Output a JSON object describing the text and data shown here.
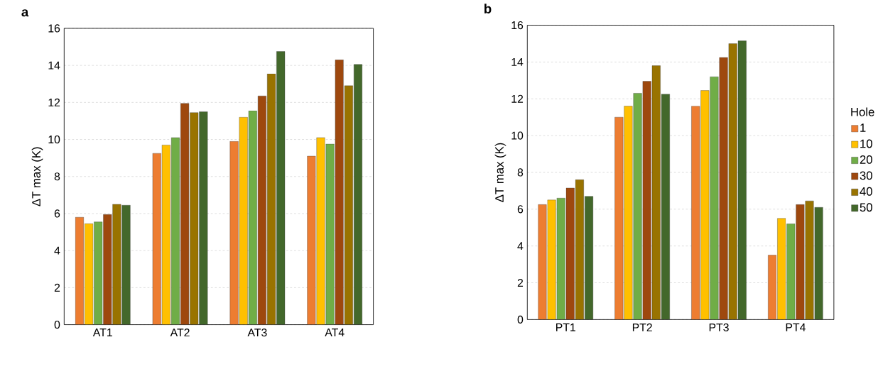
{
  "chart_data": [
    {
      "type": "bar",
      "title": "a",
      "ylabel": "ΔT max (K)",
      "categories": [
        "AT1",
        "AT2",
        "AT3",
        "AT4"
      ],
      "ylim": [
        0,
        16
      ],
      "yticks": [
        0,
        2,
        4,
        6,
        8,
        10,
        12,
        14,
        16
      ],
      "grid": "y",
      "legend": false,
      "series": [
        {
          "color": "#ed7d31",
          "values": [
            5.8,
            9.25,
            9.9,
            9.1
          ]
        },
        {
          "color": "#ffc000",
          "values": [
            5.45,
            9.7,
            11.2,
            10.1
          ]
        },
        {
          "color": "#70ad47",
          "values": [
            5.55,
            10.1,
            11.55,
            9.75
          ]
        },
        {
          "color": "#9e480e",
          "values": [
            5.95,
            11.95,
            12.35,
            14.3
          ]
        },
        {
          "color": "#997300",
          "values": [
            6.5,
            11.45,
            13.55,
            12.9
          ]
        },
        {
          "color": "#43682b",
          "values": [
            6.45,
            11.5,
            14.75,
            14.05
          ]
        }
      ]
    },
    {
      "type": "bar",
      "title": "b",
      "ylabel": "ΔT max (K)",
      "categories": [
        "PT1",
        "PT2",
        "PT3",
        "PT4"
      ],
      "ylim": [
        0,
        16
      ],
      "yticks": [
        0,
        2,
        4,
        6,
        8,
        10,
        12,
        14,
        16
      ],
      "grid": "y",
      "legend": "right",
      "legend_title": "Hole",
      "series": [
        {
          "name": "1",
          "color": "#ed7d31",
          "values": [
            6.25,
            11.0,
            11.6,
            3.5
          ]
        },
        {
          "name": "10",
          "color": "#ffc000",
          "values": [
            6.5,
            11.6,
            12.45,
            5.5
          ]
        },
        {
          "name": "20",
          "color": "#70ad47",
          "values": [
            6.6,
            12.3,
            13.2,
            5.2
          ]
        },
        {
          "name": "30",
          "color": "#9e480e",
          "values": [
            7.15,
            12.95,
            14.25,
            6.25
          ]
        },
        {
          "name": "40",
          "color": "#997300",
          "values": [
            7.6,
            13.8,
            15.0,
            6.45
          ]
        },
        {
          "name": "50",
          "color": "#43682b",
          "values": [
            6.7,
            12.25,
            15.15,
            6.1
          ]
        }
      ]
    }
  ]
}
